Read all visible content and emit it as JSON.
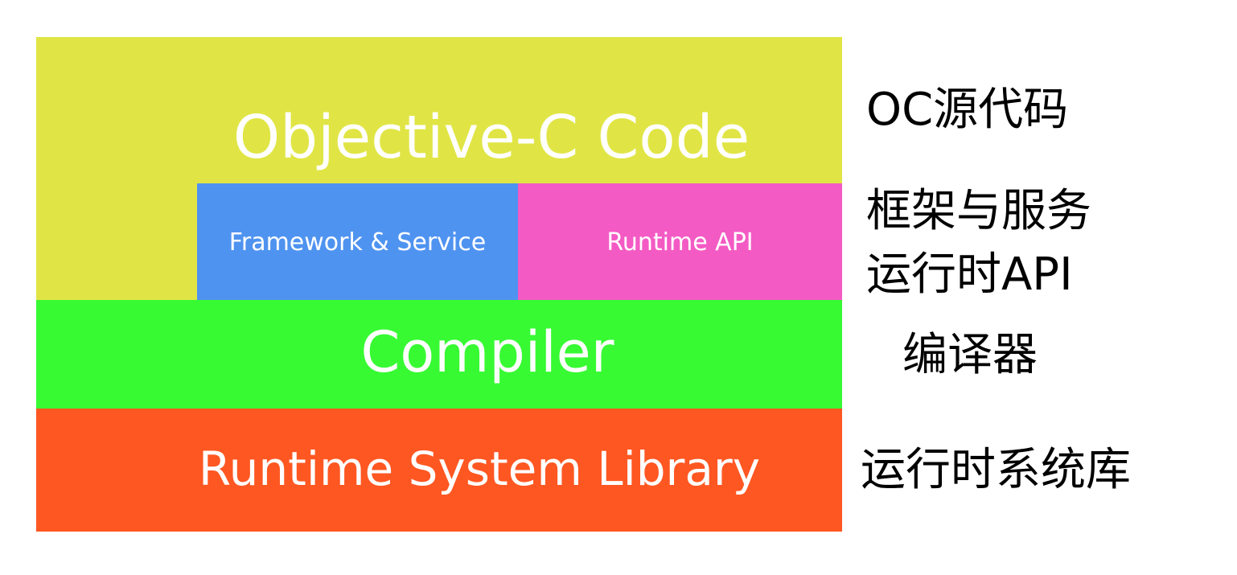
{
  "layers": {
    "objective_c_code": {
      "label": "Objective-C Code",
      "color": "#e0e545"
    },
    "framework_service": {
      "label": "Framework & Service",
      "color": "#4f93f0"
    },
    "runtime_api": {
      "label": "Runtime API",
      "color": "#f45ac4"
    },
    "compiler": {
      "label": "Compiler",
      "color": "#37fa33"
    },
    "runtime_system_library": {
      "label": "Runtime System Library",
      "color": "#ff5722"
    }
  },
  "annotations": {
    "objective_c_code": "OC源代码",
    "framework_service": "框架与服务",
    "runtime_api": "运行时API",
    "compiler": "编译器",
    "runtime_system_library": "运行时系统库"
  }
}
